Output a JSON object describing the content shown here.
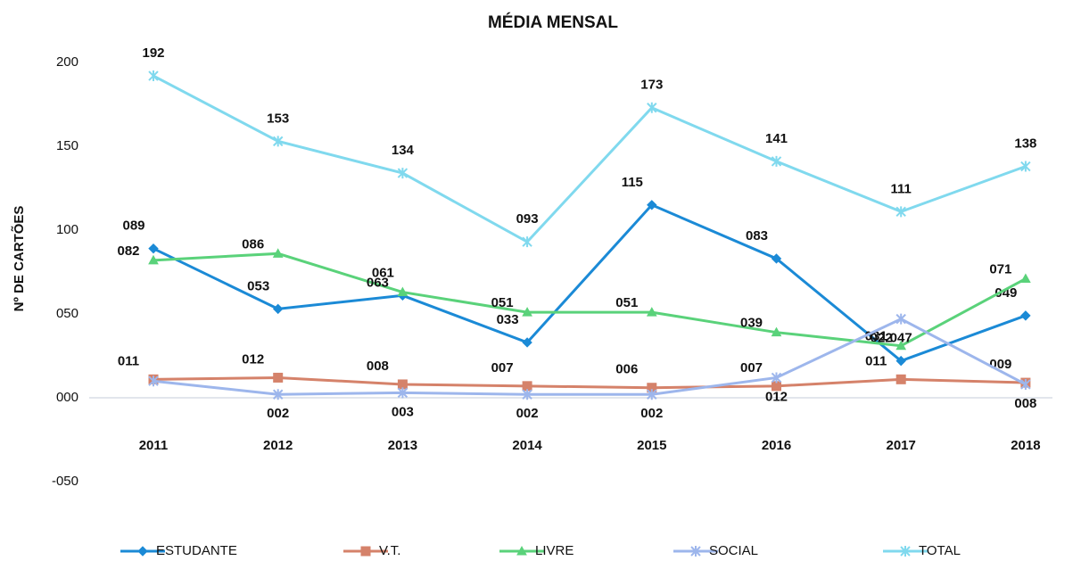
{
  "chart_data": {
    "type": "line",
    "title": "MÉDIA MENSAL",
    "y_label": "Nº DE CARTÕES",
    "categories": [
      "2011",
      "2012",
      "2013",
      "2014",
      "2015",
      "2016",
      "2017",
      "2018"
    ],
    "ylim": [
      -50,
      200
    ],
    "yticks": [
      {
        "value": -50,
        "label": "-050"
      },
      {
        "value": 0,
        "label": "000"
      },
      {
        "value": 50,
        "label": "050"
      },
      {
        "value": 100,
        "label": "100"
      },
      {
        "value": 150,
        "label": "150"
      },
      {
        "value": 200,
        "label": "200"
      }
    ],
    "grid": false,
    "legend": "bottom",
    "series": [
      {
        "name": "ESTUDANTE",
        "color": "#1b8ad6",
        "values": [
          89,
          53,
          61,
          33,
          115,
          83,
          22,
          49
        ],
        "value_labels": [
          "089",
          "053",
          "061",
          "033",
          "115",
          "083",
          "022",
          "049"
        ]
      },
      {
        "name": "V.T.",
        "color": "#d5826a",
        "values": [
          11,
          12,
          8,
          7,
          6,
          7,
          11,
          9
        ],
        "value_labels": [
          "011",
          "012",
          "008",
          "007",
          "006",
          "007",
          "011",
          "009"
        ]
      },
      {
        "name": "LIVRE",
        "color": "#5ad27a",
        "values": [
          82,
          86,
          63,
          51,
          51,
          39,
          31,
          71
        ],
        "value_labels": [
          "082",
          "086",
          "063",
          "051",
          "051",
          "039",
          "031",
          "071"
        ]
      },
      {
        "name": "SOCIAL",
        "color": "#9db6ec",
        "values": [
          10,
          2,
          3,
          2,
          2,
          12,
          47,
          8
        ],
        "value_labels": [
          null,
          "002",
          "003",
          "002",
          "002",
          "012",
          "047",
          "008"
        ]
      },
      {
        "name": "TOTAL",
        "color": "#80d9ee",
        "values": [
          192,
          153,
          134,
          93,
          173,
          141,
          111,
          138
        ],
        "value_labels": [
          "192",
          "153",
          "134",
          "093",
          "173",
          "141",
          "111",
          "138"
        ]
      }
    ]
  }
}
